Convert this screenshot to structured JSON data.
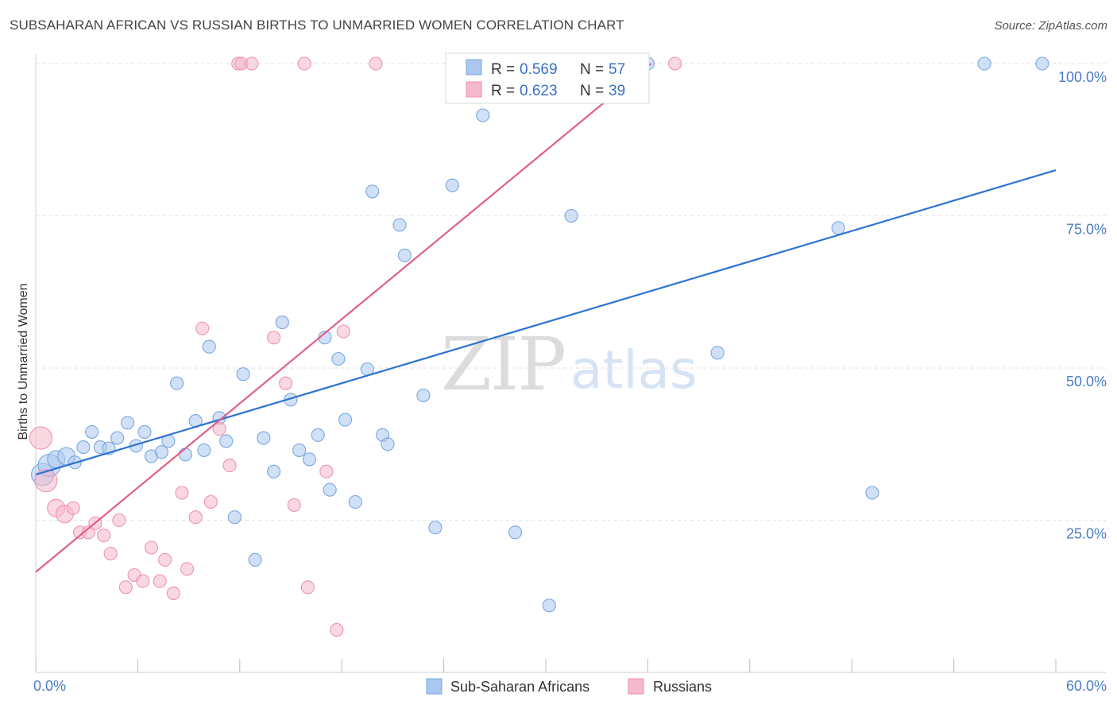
{
  "header": {
    "title": "SUBSAHARAN AFRICAN VS RUSSIAN BIRTHS TO UNMARRIED WOMEN CORRELATION CHART",
    "source": "Source: ZipAtlas.com"
  },
  "watermark": {
    "zip": "ZIP",
    "atlas": "atlas"
  },
  "legend": {
    "r_label": "R =",
    "n_label": "N =",
    "entries": [
      {
        "r": "0.569",
        "n": "57",
        "color": "#a9c8f0"
      },
      {
        "r": "0.623",
        "n": "39",
        "color": "#f6b8cb"
      }
    ]
  },
  "bottom_legend": {
    "items": [
      {
        "label": "Sub-Saharan Africans",
        "color": "#a9c8f0"
      },
      {
        "label": "Russians",
        "color": "#f6b8cb"
      }
    ]
  },
  "chart_data": {
    "type": "scatter",
    "title": "SUBSAHARAN AFRICAN VS RUSSIAN BIRTHS TO UNMARRIED WOMEN CORRELATION CHART",
    "ylabel": "Births to Unmarried Women",
    "xlim": [
      0,
      60
    ],
    "ylim": [
      0,
      100
    ],
    "x_ticks": [
      "0.0%",
      "60.0%"
    ],
    "y_ticks": [
      {
        "value": 25,
        "label": "25.0%"
      },
      {
        "value": 50,
        "label": "50.0%"
      },
      {
        "value": 75,
        "label": "75.0%"
      },
      {
        "value": 100,
        "label": "100.0%"
      }
    ],
    "grid": true,
    "series": [
      {
        "name": "Sub-Saharan Africans",
        "color": "#a9c8f0",
        "stroke": "#7aa6e0",
        "line_color": "#2d72d2",
        "trend": [
          [
            0,
            32.5
          ],
          [
            60,
            82.5
          ]
        ],
        "points": [
          [
            0.4,
            32.5
          ],
          [
            0.8,
            34.0
          ],
          [
            1.2,
            35.0
          ],
          [
            1.8,
            35.5
          ],
          [
            2.3,
            34.5
          ],
          [
            2.8,
            37.0
          ],
          [
            3.3,
            39.5
          ],
          [
            3.8,
            37.0
          ],
          [
            4.3,
            36.8
          ],
          [
            4.8,
            38.5
          ],
          [
            5.4,
            41.0
          ],
          [
            5.9,
            37.2
          ],
          [
            6.4,
            39.5
          ],
          [
            6.8,
            35.5
          ],
          [
            7.4,
            36.2
          ],
          [
            7.8,
            38.0
          ],
          [
            8.3,
            47.5
          ],
          [
            8.8,
            35.8
          ],
          [
            9.4,
            41.3
          ],
          [
            9.9,
            36.5
          ],
          [
            10.2,
            53.5
          ],
          [
            10.8,
            41.8
          ],
          [
            11.2,
            38.0
          ],
          [
            11.7,
            25.5
          ],
          [
            12.2,
            49.0
          ],
          [
            12.9,
            18.5
          ],
          [
            13.4,
            38.5
          ],
          [
            14.0,
            33.0
          ],
          [
            14.5,
            57.5
          ],
          [
            15.0,
            44.8
          ],
          [
            15.5,
            36.5
          ],
          [
            16.1,
            35.0
          ],
          [
            16.6,
            39.0
          ],
          [
            17.0,
            55.0
          ],
          [
            17.3,
            30.0
          ],
          [
            17.8,
            51.5
          ],
          [
            18.2,
            41.5
          ],
          [
            18.8,
            28.0
          ],
          [
            19.5,
            49.8
          ],
          [
            19.8,
            79.0
          ],
          [
            20.4,
            39.0
          ],
          [
            20.7,
            37.5
          ],
          [
            21.4,
            73.5
          ],
          [
            21.7,
            68.5
          ],
          [
            22.8,
            45.5
          ],
          [
            23.5,
            23.8
          ],
          [
            24.5,
            80.0
          ],
          [
            26.3,
            91.5
          ],
          [
            28.2,
            23.0
          ],
          [
            30.2,
            11.0
          ],
          [
            31.5,
            75.0
          ],
          [
            36.0,
            100.0
          ],
          [
            40.1,
            52.5
          ],
          [
            47.2,
            73.0
          ],
          [
            49.2,
            29.5
          ],
          [
            55.8,
            102.0
          ],
          [
            59.2,
            102.0
          ]
        ]
      },
      {
        "name": "Russians",
        "color": "#f6b8cb",
        "stroke": "#ee93b0",
        "line_color": "#e0608a",
        "trend": [
          [
            0,
            16.5
          ],
          [
            36.2,
            102.0
          ]
        ],
        "points": [
          [
            0.3,
            38.5
          ],
          [
            0.6,
            31.5
          ],
          [
            1.2,
            27.0
          ],
          [
            1.7,
            26.0
          ],
          [
            2.2,
            27.0
          ],
          [
            2.6,
            23.0
          ],
          [
            3.1,
            23.0
          ],
          [
            3.5,
            24.5
          ],
          [
            4.0,
            22.5
          ],
          [
            4.4,
            19.5
          ],
          [
            4.9,
            25.0
          ],
          [
            5.3,
            14.0
          ],
          [
            5.8,
            16.0
          ],
          [
            6.3,
            15.0
          ],
          [
            6.8,
            20.5
          ],
          [
            7.3,
            15.0
          ],
          [
            7.6,
            18.5
          ],
          [
            8.1,
            13.0
          ],
          [
            8.6,
            29.5
          ],
          [
            8.9,
            17.0
          ],
          [
            9.4,
            25.5
          ],
          [
            9.8,
            56.5
          ],
          [
            10.3,
            28.0
          ],
          [
            10.8,
            40.0
          ],
          [
            11.4,
            34.0
          ],
          [
            11.9,
            102.0
          ],
          [
            12.1,
            102.0
          ],
          [
            12.7,
            102.0
          ],
          [
            14.0,
            55.0
          ],
          [
            14.7,
            47.5
          ],
          [
            15.2,
            27.5
          ],
          [
            15.8,
            102.0
          ],
          [
            16.0,
            14.0
          ],
          [
            17.1,
            33.0
          ],
          [
            17.7,
            7.0
          ],
          [
            18.1,
            56.0
          ],
          [
            20.0,
            102.0
          ],
          [
            35.5,
            102.0
          ],
          [
            37.6,
            102.0
          ]
        ]
      }
    ]
  }
}
